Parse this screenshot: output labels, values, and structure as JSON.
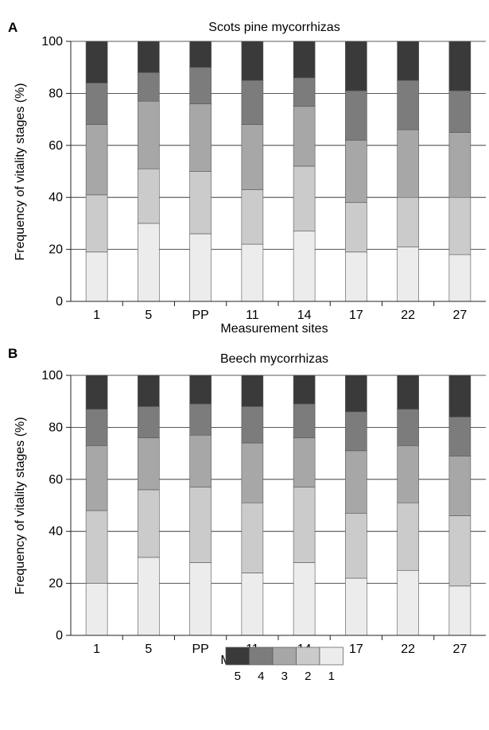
{
  "legend": {
    "stages": [
      "5",
      "4",
      "3",
      "2",
      "1"
    ],
    "colors": [
      "#3a3a3a",
      "#7c7c7c",
      "#a7a7a7",
      "#cbcbcb",
      "#ececec"
    ]
  },
  "chart_data": [
    {
      "type": "bar",
      "stacked": true,
      "panel": "A",
      "title": "Scots pine mycorrhizas",
      "xlabel": "Measurement sites",
      "ylabel": "Frequency of vitality stages (%)",
      "ylim": [
        0,
        100
      ],
      "yticks": [
        0,
        20,
        40,
        60,
        80,
        100
      ],
      "grid": true,
      "categories": [
        "1",
        "5",
        "PP",
        "11",
        "14",
        "17",
        "22",
        "27"
      ],
      "series": [
        {
          "name": "1",
          "color": "#ececec",
          "values": [
            19,
            30,
            26,
            22,
            27,
            19,
            21,
            18
          ]
        },
        {
          "name": "2",
          "color": "#cbcbcb",
          "values": [
            22,
            21,
            24,
            21,
            25,
            19,
            19,
            22
          ]
        },
        {
          "name": "3",
          "color": "#a7a7a7",
          "values": [
            27,
            26,
            26,
            25,
            23,
            24,
            26,
            25
          ]
        },
        {
          "name": "4",
          "color": "#7c7c7c",
          "values": [
            16,
            11,
            14,
            17,
            11,
            19,
            19,
            16
          ]
        },
        {
          "name": "5",
          "color": "#3a3a3a",
          "values": [
            16,
            12,
            10,
            15,
            14,
            19,
            15,
            19
          ]
        }
      ]
    },
    {
      "type": "bar",
      "stacked": true,
      "panel": "B",
      "title": "Beech mycorrhizas",
      "xlabel": "Measurement sites",
      "ylabel": "Frequency of vitality stages (%)",
      "ylim": [
        0,
        100
      ],
      "yticks": [
        0,
        20,
        40,
        60,
        80,
        100
      ],
      "grid": true,
      "categories": [
        "1",
        "5",
        "PP",
        "11",
        "14",
        "17",
        "22",
        "27"
      ],
      "series": [
        {
          "name": "1",
          "color": "#ececec",
          "values": [
            20,
            30,
            28,
            24,
            28,
            22,
            25,
            19
          ]
        },
        {
          "name": "2",
          "color": "#cbcbcb",
          "values": [
            28,
            26,
            29,
            27,
            29,
            25,
            26,
            27
          ]
        },
        {
          "name": "3",
          "color": "#a7a7a7",
          "values": [
            25,
            20,
            20,
            23,
            19,
            24,
            22,
            23
          ]
        },
        {
          "name": "4",
          "color": "#7c7c7c",
          "values": [
            14,
            12,
            12,
            14,
            13,
            15,
            14,
            15
          ]
        },
        {
          "name": "5",
          "color": "#3a3a3a",
          "values": [
            13,
            12,
            11,
            12,
            11,
            14,
            13,
            16
          ]
        }
      ]
    }
  ]
}
